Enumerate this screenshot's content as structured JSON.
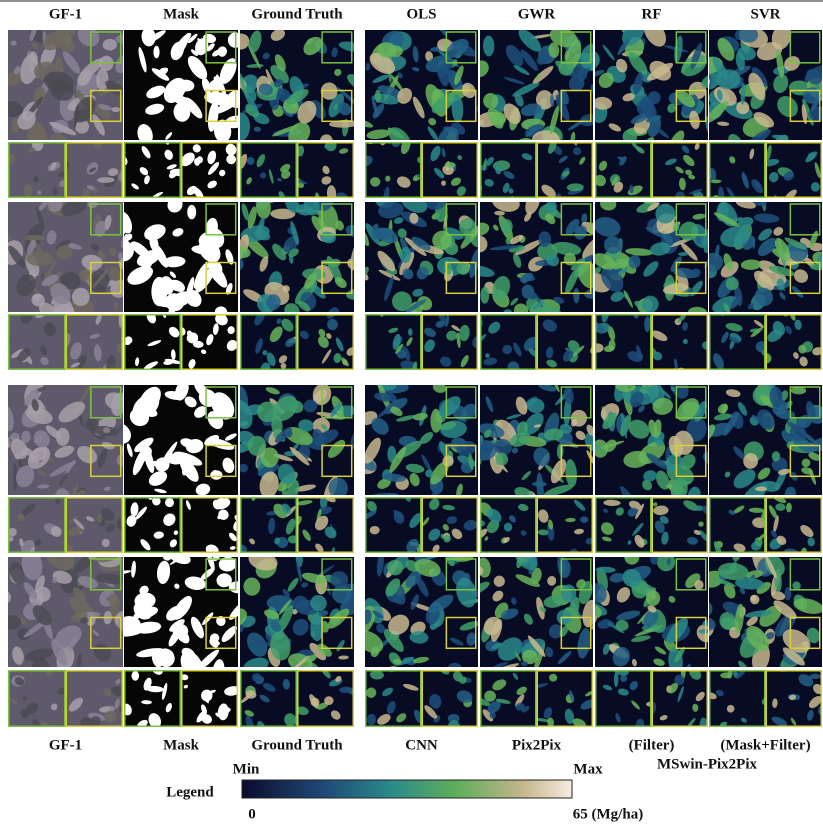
{
  "headers": {
    "top": [
      "GF-1",
      "Mask",
      "Ground Truth",
      "OLS",
      "GWR",
      "RF",
      "SVR"
    ],
    "bottom": [
      "GF-1",
      "Mask",
      "Ground Truth",
      "CNN",
      "Pix2Pix",
      "(Filter)",
      "(Mask+Filter)"
    ],
    "bottom_note": "MSwin-Pix2Pix"
  },
  "legend": {
    "label": "Legend",
    "min_label": "Min",
    "max_label": "Max",
    "min_value": "0",
    "max_value": "65 (Mg/ha)"
  }
}
